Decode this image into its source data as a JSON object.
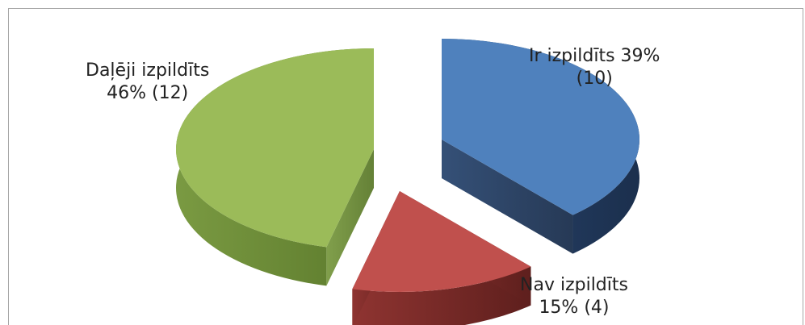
{
  "chart_data": {
    "type": "pie",
    "style": "3d-exploded",
    "legend": "none",
    "slices": [
      {
        "label": "Ir izpildīts",
        "percent_text": "39%",
        "count_text": "(10)",
        "value": 10,
        "color": "#4f81bd"
      },
      {
        "label": "Nav izpildīts",
        "percent_text": "15%",
        "count_text": "(4)",
        "value": 4,
        "color": "#c0504d"
      },
      {
        "label": "Daļēji izpildīts",
        "percent_text": "46%",
        "count_text": "(12)",
        "value": 12,
        "color": "#9bbb59"
      }
    ]
  }
}
